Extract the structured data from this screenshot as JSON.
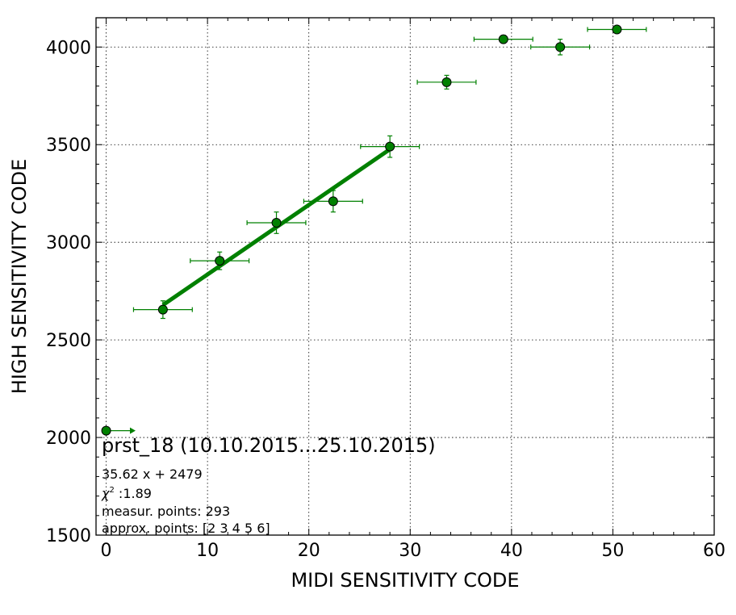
{
  "chart_data": {
    "type": "scatter",
    "xlabel": "MIDI SENSITIVITY CODE",
    "ylabel": "HIGH SENSITIVITY CODE",
    "xlim": [
      -1,
      60
    ],
    "ylim": [
      1500,
      4150
    ],
    "xticks": [
      "0",
      "10",
      "20",
      "30",
      "40",
      "50",
      "60"
    ],
    "yticks": [
      "1500",
      "2000",
      "2500",
      "3000",
      "3500",
      "4000"
    ],
    "grid": true,
    "color": "#008000",
    "points": [
      {
        "x": 5.6,
        "y": 2655,
        "xerr": 2.9,
        "yerr": 45
      },
      {
        "x": 11.2,
        "y": 2905,
        "xerr": 2.9,
        "yerr": 45
      },
      {
        "x": 16.8,
        "y": 3100,
        "xerr": 2.9,
        "yerr": 55
      },
      {
        "x": 22.4,
        "y": 3210,
        "xerr": 2.9,
        "yerr": 55
      },
      {
        "x": 28.0,
        "y": 3490,
        "xerr": 2.9,
        "yerr": 55
      },
      {
        "x": 33.6,
        "y": 3820,
        "xerr": 2.9,
        "yerr": 35
      },
      {
        "x": 39.2,
        "y": 4040,
        "xerr": 2.9,
        "yerr": 20
      },
      {
        "x": 44.8,
        "y": 4000,
        "xerr": 2.9,
        "yerr": 40
      },
      {
        "x": 50.4,
        "y": 4090,
        "xerr": 2.9,
        "yerr": 10
      }
    ],
    "upper_limit_point": {
      "x": 0,
      "y": 2035,
      "arrow_to_x": 2.9
    },
    "fit": {
      "slope": 35.62,
      "intercept": 2479,
      "x_from": 5.6,
      "x_to": 28.0
    },
    "annotations": {
      "title": "prst_18 (10.10.2015...25.10.2015)",
      "equation": "35.62 x + 2479",
      "chi_label": "χ",
      "chi_sup": "2",
      "chi_value": " :1.89",
      "measur": "measur. points: 293",
      "approx": "approx. points: [2 3 4 5 6]"
    }
  }
}
